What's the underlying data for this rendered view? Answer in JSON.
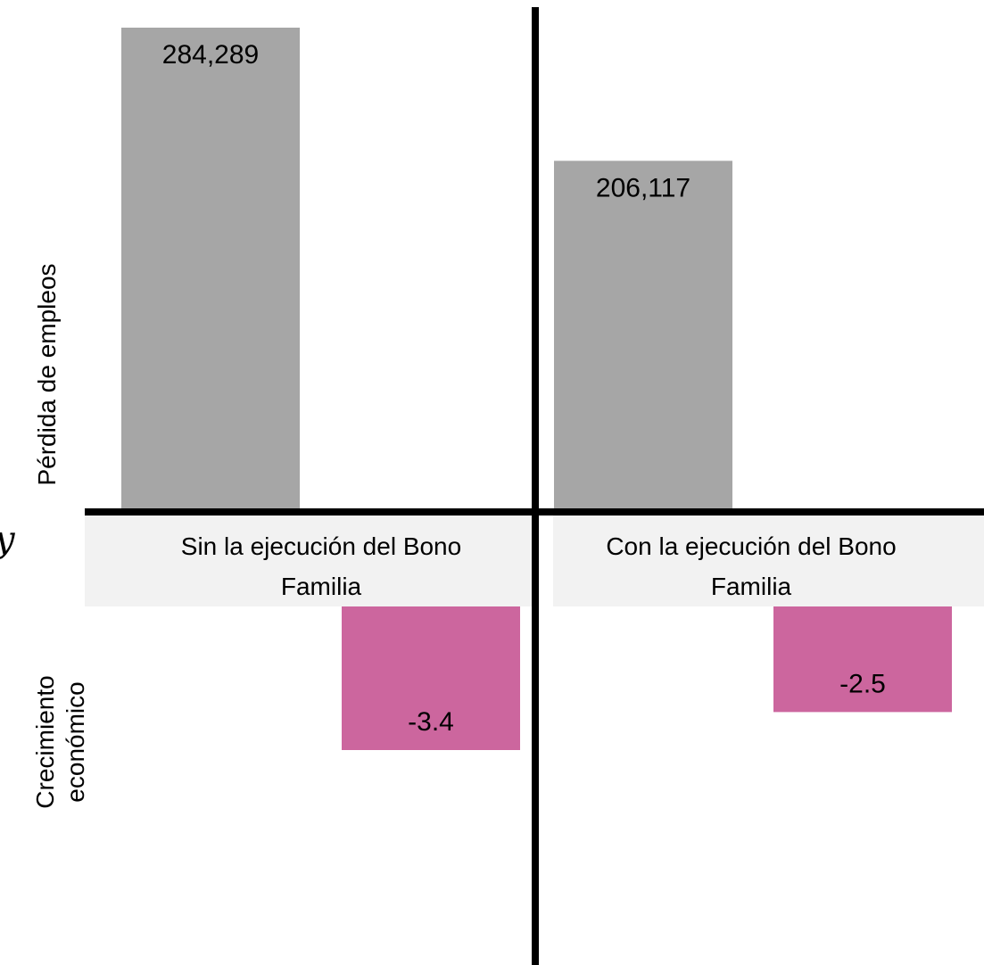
{
  "chart_data": {
    "type": "bar",
    "categories": [
      [
        "Sin la ejecución del Bono",
        "Familia"
      ],
      [
        "Con la ejecución del Bono",
        "Familia"
      ]
    ],
    "series": [
      {
        "name": "Pérdida de empleos",
        "values": [
          284289,
          206117
        ],
        "labels": [
          "284,289",
          "206,117"
        ],
        "color": "#a6a6a6"
      },
      {
        "name": "Crecimiento económico",
        "values": [
          -3.4,
          -2.5
        ],
        "labels": [
          "-3.4",
          "-2.5"
        ],
        "color": "#cc669e"
      }
    ],
    "ylabels": {
      "top": [
        "Pérdida de empleos"
      ],
      "bottom": [
        "Crecimiento",
        "económico"
      ]
    },
    "stray_glyph": "y",
    "category_band_color": "#f2f2f2",
    "grid": false,
    "legend": "none"
  }
}
